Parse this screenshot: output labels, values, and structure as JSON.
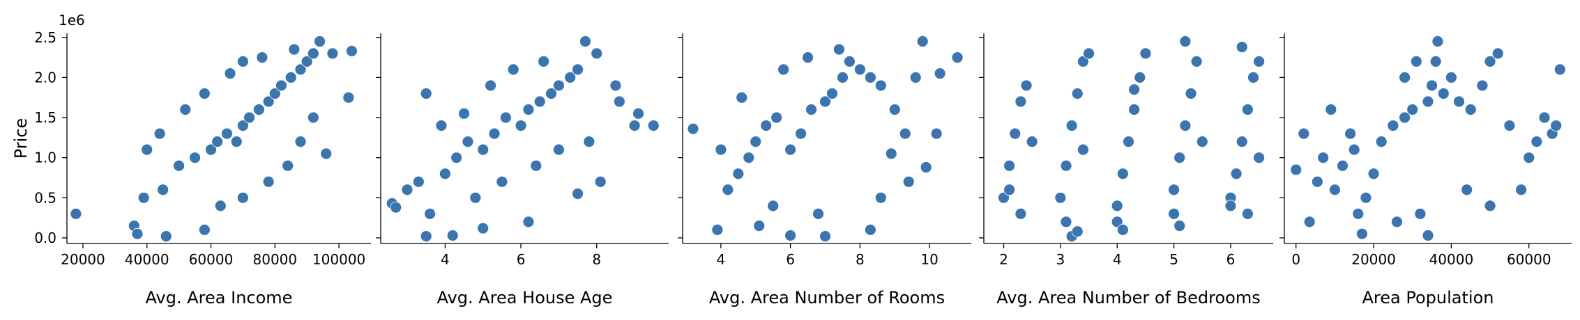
{
  "chart_data": [
    {
      "type": "scatter",
      "xlabel": "Avg. Area Income",
      "ylabel": "Price",
      "y_offset_label": "1e6",
      "xlim": [
        15000,
        110000
      ],
      "ylim": [
        -0.07,
        2.55
      ],
      "x_ticks": [
        20000,
        40000,
        60000,
        80000,
        100000
      ],
      "y_ticks": [
        0.0,
        0.5,
        1.0,
        1.5,
        2.0,
        2.5
      ],
      "y_tick_labels": [
        "0.0",
        "0.5",
        "1.0",
        "1.5",
        "2.0",
        "2.5"
      ],
      "color": "#3b75af",
      "points": [
        [
          17800,
          0.3
        ],
        [
          36000,
          0.15
        ],
        [
          39000,
          0.5
        ],
        [
          45000,
          0.6
        ],
        [
          50000,
          0.9
        ],
        [
          55000,
          1.0
        ],
        [
          60000,
          1.1
        ],
        [
          62000,
          1.2
        ],
        [
          65000,
          1.3
        ],
        [
          68000,
          1.2
        ],
        [
          70000,
          1.4
        ],
        [
          72000,
          1.5
        ],
        [
          75000,
          1.6
        ],
        [
          78000,
          1.7
        ],
        [
          80000,
          1.8
        ],
        [
          82000,
          1.9
        ],
        [
          85000,
          2.0
        ],
        [
          88000,
          2.1
        ],
        [
          90000,
          2.2
        ],
        [
          92000,
          2.3
        ],
        [
          94000,
          2.45
        ],
        [
          98000,
          2.3
        ],
        [
          104000,
          2.33
        ],
        [
          103000,
          1.75
        ],
        [
          96000,
          1.05
        ],
        [
          37000,
          0.05
        ],
        [
          46000,
          0.02
        ],
        [
          58000,
          0.1
        ],
        [
          40000,
          1.1
        ],
        [
          44000,
          1.3
        ],
        [
          52000,
          1.6
        ],
        [
          58000,
          1.8
        ],
        [
          66000,
          2.05
        ],
        [
          70000,
          2.2
        ],
        [
          76000,
          2.25
        ],
        [
          86000,
          2.35
        ],
        [
          63000,
          0.4
        ],
        [
          70000,
          0.5
        ],
        [
          78000,
          0.7
        ],
        [
          84000,
          0.9
        ],
        [
          88000,
          1.2
        ],
        [
          92000,
          1.5
        ]
      ]
    },
    {
      "type": "scatter",
      "xlabel": "Avg. Area House Age",
      "xlim": [
        2.3,
        9.9
      ],
      "ylim": [
        -0.07,
        2.55
      ],
      "x_ticks": [
        4,
        6,
        8
      ],
      "color": "#3b75af",
      "points": [
        [
          2.6,
          0.43
        ],
        [
          2.7,
          0.38
        ],
        [
          3.0,
          0.6
        ],
        [
          3.3,
          0.7
        ],
        [
          3.5,
          0.02
        ],
        [
          3.5,
          1.8
        ],
        [
          3.6,
          0.3
        ],
        [
          4.0,
          0.8
        ],
        [
          4.3,
          1.0
        ],
        [
          4.6,
          1.2
        ],
        [
          5.0,
          1.1
        ],
        [
          5.3,
          1.3
        ],
        [
          5.6,
          1.5
        ],
        [
          6.0,
          1.4
        ],
        [
          6.2,
          1.6
        ],
        [
          6.5,
          1.7
        ],
        [
          6.8,
          1.8
        ],
        [
          7.0,
          1.9
        ],
        [
          7.3,
          2.0
        ],
        [
          7.5,
          2.1
        ],
        [
          7.7,
          2.45
        ],
        [
          8.0,
          2.3
        ],
        [
          8.5,
          1.9
        ],
        [
          9.0,
          1.4
        ],
        [
          9.5,
          1.4
        ],
        [
          9.1,
          1.55
        ],
        [
          4.2,
          0.03
        ],
        [
          5.0,
          0.12
        ],
        [
          6.2,
          0.2
        ],
        [
          7.5,
          0.55
        ],
        [
          8.1,
          0.7
        ],
        [
          4.5,
          1.55
        ],
        [
          5.2,
          1.9
        ],
        [
          5.8,
          2.1
        ],
        [
          6.6,
          2.2
        ],
        [
          7.0,
          1.1
        ],
        [
          7.8,
          1.2
        ],
        [
          8.6,
          1.7
        ],
        [
          4.8,
          0.5
        ],
        [
          5.5,
          0.7
        ],
        [
          6.4,
          0.9
        ],
        [
          3.9,
          1.4
        ]
      ]
    },
    {
      "type": "scatter",
      "xlabel": "Avg. Area Number of Rooms",
      "xlim": [
        2.9,
        11.2
      ],
      "ylim": [
        -0.07,
        2.55
      ],
      "x_ticks": [
        4,
        6,
        8,
        10
      ],
      "color": "#3b75af",
      "points": [
        [
          3.2,
          1.36
        ],
        [
          3.9,
          0.1
        ],
        [
          4.0,
          1.1
        ],
        [
          4.2,
          0.6
        ],
        [
          4.5,
          0.8
        ],
        [
          4.8,
          1.0
        ],
        [
          5.0,
          1.2
        ],
        [
          5.3,
          1.4
        ],
        [
          5.6,
          1.5
        ],
        [
          6.0,
          1.1
        ],
        [
          6.3,
          1.3
        ],
        [
          6.6,
          1.6
        ],
        [
          7.0,
          1.7
        ],
        [
          7.2,
          1.8
        ],
        [
          7.5,
          2.0
        ],
        [
          7.7,
          2.2
        ],
        [
          8.0,
          2.1
        ],
        [
          8.3,
          2.0
        ],
        [
          8.6,
          1.9
        ],
        [
          9.0,
          1.6
        ],
        [
          9.3,
          1.3
        ],
        [
          9.6,
          2.0
        ],
        [
          9.8,
          2.45
        ],
        [
          10.3,
          2.05
        ],
        [
          10.8,
          2.25
        ],
        [
          10.2,
          1.3
        ],
        [
          9.9,
          0.88
        ],
        [
          6.0,
          0.03
        ],
        [
          7.0,
          0.02
        ],
        [
          8.3,
          0.1
        ],
        [
          5.5,
          0.4
        ],
        [
          6.8,
          0.3
        ],
        [
          8.6,
          0.5
        ],
        [
          5.8,
          2.1
        ],
        [
          6.5,
          2.25
        ],
        [
          7.4,
          2.35
        ],
        [
          4.6,
          1.75
        ],
        [
          5.1,
          0.15
        ],
        [
          9.4,
          0.7
        ],
        [
          8.9,
          1.05
        ]
      ]
    },
    {
      "type": "scatter",
      "xlabel": "Avg. Area Number of Bedrooms",
      "xlim": [
        1.65,
        6.75
      ],
      "ylim": [
        -0.07,
        2.55
      ],
      "x_ticks": [
        2,
        3,
        4,
        5,
        6
      ],
      "color": "#3b75af",
      "points": [
        [
          2.0,
          0.5
        ],
        [
          2.1,
          0.9
        ],
        [
          2.2,
          1.3
        ],
        [
          2.3,
          1.7
        ],
        [
          2.4,
          1.9
        ],
        [
          2.3,
          0.3
        ],
        [
          2.1,
          0.6
        ],
        [
          2.5,
          1.2
        ],
        [
          3.0,
          0.5
        ],
        [
          3.1,
          0.9
        ],
        [
          3.2,
          1.4
        ],
        [
          3.3,
          1.8
        ],
        [
          3.4,
          2.2
        ],
        [
          3.5,
          2.3
        ],
        [
          3.2,
          0.02
        ],
        [
          3.3,
          0.08
        ],
        [
          3.1,
          0.2
        ],
        [
          3.4,
          1.1
        ],
        [
          4.0,
          0.4
        ],
        [
          4.1,
          0.8
        ],
        [
          4.2,
          1.2
        ],
        [
          4.3,
          1.6
        ],
        [
          4.4,
          2.0
        ],
        [
          4.5,
          2.3
        ],
        [
          4.0,
          0.2
        ],
        [
          4.1,
          0.1
        ],
        [
          4.3,
          1.85
        ],
        [
          5.0,
          0.6
        ],
        [
          5.1,
          1.0
        ],
        [
          5.2,
          1.4
        ],
        [
          5.3,
          1.8
        ],
        [
          5.2,
          2.45
        ],
        [
          5.4,
          2.2
        ],
        [
          5.0,
          0.3
        ],
        [
          5.1,
          0.15
        ],
        [
          5.5,
          1.2
        ],
        [
          6.0,
          0.5
        ],
        [
          6.1,
          0.8
        ],
        [
          6.2,
          1.2
        ],
        [
          6.3,
          1.6
        ],
        [
          6.4,
          2.0
        ],
        [
          6.5,
          2.2
        ],
        [
          6.2,
          2.38
        ],
        [
          6.0,
          0.4
        ],
        [
          6.3,
          0.3
        ],
        [
          6.5,
          1.0
        ]
      ]
    },
    {
      "type": "scatter",
      "xlabel": "Area Population",
      "xlim": [
        -3000,
        71000
      ],
      "ylim": [
        -0.07,
        2.55
      ],
      "x_ticks": [
        0,
        20000,
        40000,
        60000
      ],
      "color": "#3b75af",
      "points": [
        [
          0,
          0.85
        ],
        [
          2000,
          1.3
        ],
        [
          3500,
          0.2
        ],
        [
          5500,
          0.7
        ],
        [
          7000,
          1.0
        ],
        [
          9000,
          1.6
        ],
        [
          10000,
          0.6
        ],
        [
          12000,
          0.9
        ],
        [
          15000,
          1.1
        ],
        [
          17000,
          0.05
        ],
        [
          18000,
          0.5
        ],
        [
          20000,
          0.8
        ],
        [
          22000,
          1.2
        ],
        [
          25000,
          1.4
        ],
        [
          28000,
          1.5
        ],
        [
          30000,
          1.6
        ],
        [
          32000,
          0.3
        ],
        [
          34000,
          1.7
        ],
        [
          34000,
          0.03
        ],
        [
          35000,
          1.9
        ],
        [
          36000,
          2.2
        ],
        [
          36500,
          2.45
        ],
        [
          38000,
          1.8
        ],
        [
          40000,
          2.0
        ],
        [
          42000,
          1.7
        ],
        [
          45000,
          1.6
        ],
        [
          48000,
          1.9
        ],
        [
          50000,
          2.2
        ],
        [
          52000,
          2.3
        ],
        [
          55000,
          1.4
        ],
        [
          58000,
          0.6
        ],
        [
          60000,
          1.0
        ],
        [
          62000,
          1.2
        ],
        [
          64000,
          1.5
        ],
        [
          66000,
          1.3
        ],
        [
          68000,
          2.1
        ],
        [
          67000,
          1.4
        ],
        [
          44000,
          0.6
        ],
        [
          50000,
          0.4
        ],
        [
          26000,
          0.2
        ],
        [
          28000,
          2.0
        ],
        [
          31000,
          2.2
        ],
        [
          14000,
          1.3
        ],
        [
          16000,
          0.3
        ]
      ]
    }
  ]
}
